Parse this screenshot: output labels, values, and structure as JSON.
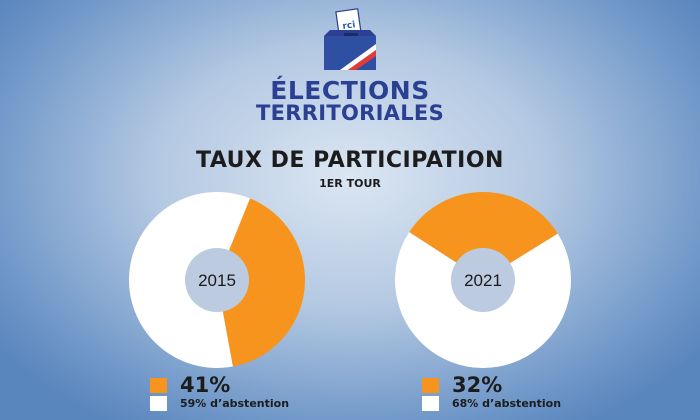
{
  "header": {
    "title_line1": "ÉLECTIONS",
    "title_line2": "TERRITORIALES",
    "logo_text": "rci"
  },
  "heading": "TAUX DE PARTICIPATION",
  "subheading": "1ER TOUR",
  "colors": {
    "participation": "#f7941d",
    "abstention": "#ffffff",
    "center": "#bccbe0",
    "title": "#2b3f93"
  },
  "chart_data": [
    {
      "type": "pie",
      "center_label": "2015",
      "slices": [
        {
          "label": "41%",
          "value": 41
        },
        {
          "label": "59% d’abstention",
          "value": 59
        }
      ],
      "legend": {
        "participation": "41%",
        "abstention": "59% d’abstention"
      }
    },
    {
      "type": "pie",
      "center_label": "2021",
      "slices": [
        {
          "label": "32%",
          "value": 32
        },
        {
          "label": "68% d’abstention",
          "value": 68
        }
      ],
      "legend": {
        "participation": "32%",
        "abstention": "68% d’abstention"
      }
    }
  ]
}
